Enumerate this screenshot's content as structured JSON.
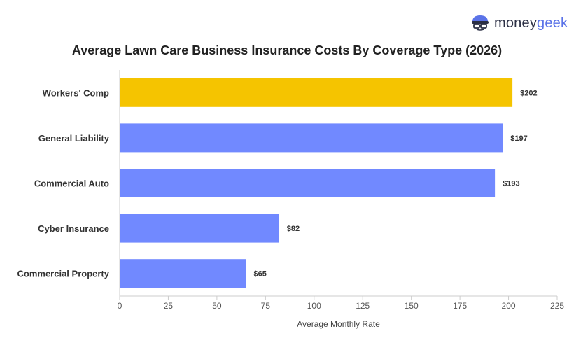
{
  "brand": {
    "money": "money",
    "geek": "geek",
    "icon": "moneygeek-mascot-icon"
  },
  "chart_data": {
    "type": "bar",
    "orientation": "horizontal",
    "title": "Average Lawn Care Business Insurance Costs By Coverage Type (2026)",
    "xlabel": "Average Monthly Rate",
    "categories": [
      "Workers' Comp",
      "General Liability",
      "Commercial Auto",
      "Cyber Insurance",
      "Commercial Property"
    ],
    "values": [
      202,
      197,
      193,
      82,
      65
    ],
    "value_labels": [
      "$202",
      "$197",
      "$193",
      "$82",
      "$65"
    ],
    "highlight_index": 0,
    "colors": {
      "highlight": "#F5C400",
      "default": "#7189FF"
    },
    "xlim": [
      0,
      225
    ],
    "xticks": [
      0,
      25,
      50,
      75,
      100,
      125,
      150,
      175,
      200,
      225
    ],
    "grid": false,
    "legend": "none"
  }
}
